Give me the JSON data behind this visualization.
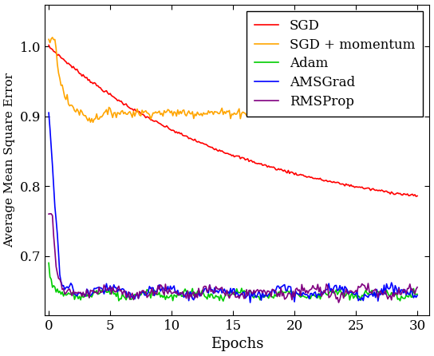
{
  "title": "",
  "xlabel": "Epochs",
  "ylabel": "Average Mean Square Error",
  "xlim": [
    -0.3,
    31
  ],
  "ylim": [
    0.615,
    1.06
  ],
  "yticks": [
    0.7,
    0.8,
    0.9,
    1.0
  ],
  "xticks": [
    0,
    5,
    10,
    15,
    20,
    25,
    30
  ],
  "legend": [
    "SGD",
    "SGD + momentum",
    "Adam",
    "AMSGrad",
    "RMSProp"
  ],
  "colors": {
    "SGD": "#ff0000",
    "SGD + momentum": "#ffa500",
    "Adam": "#00cc00",
    "AMSGrad": "#0000ff",
    "RMSProp": "#800080"
  },
  "linewidth": 1.2,
  "figsize": [
    5.44,
    4.46
  ],
  "dpi": 100
}
